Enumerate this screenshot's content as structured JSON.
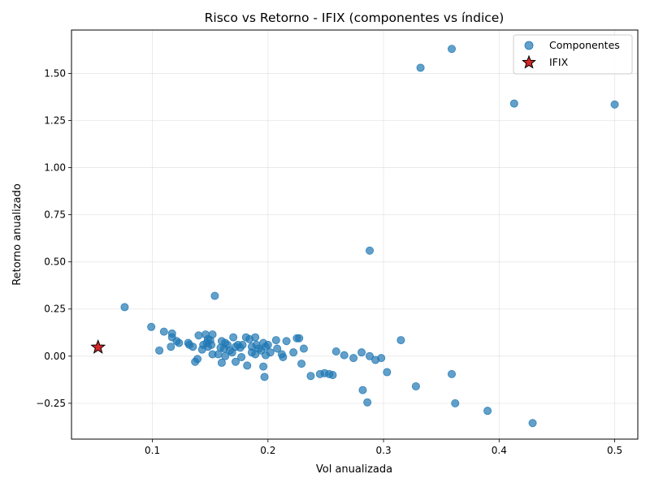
{
  "chart_data": {
    "type": "scatter",
    "title": "Risco vs Retorno - IFIX (componentes vs índice)",
    "xlabel": "Vol anualizada",
    "ylabel": "Retorno anualizado",
    "xlim": [
      0.03,
      0.52
    ],
    "ylim": [
      -0.44,
      1.73
    ],
    "xticks": [
      0.1,
      0.2,
      0.3,
      0.4,
      0.5
    ],
    "xtick_labels": [
      "0.1",
      "0.2",
      "0.3",
      "0.4",
      "0.5"
    ],
    "yticks": [
      -0.25,
      0.0,
      0.25,
      0.5,
      0.75,
      1.0,
      1.25,
      1.5
    ],
    "ytick_labels": [
      "−0.25",
      "0.00",
      "0.25",
      "0.50",
      "0.75",
      "1.00",
      "1.25",
      "1.50"
    ],
    "grid": true,
    "legend_position": "top-right",
    "series": [
      {
        "name": "Componentes",
        "marker": "circle",
        "color": "#1f77b4",
        "points": [
          [
            0.359,
            1.63
          ],
          [
            0.332,
            1.53
          ],
          [
            0.413,
            1.34
          ],
          [
            0.5,
            1.335
          ],
          [
            0.288,
            0.56
          ],
          [
            0.154,
            0.32
          ],
          [
            0.076,
            0.26
          ],
          [
            0.099,
            0.155
          ],
          [
            0.11,
            0.13
          ],
          [
            0.117,
            0.12
          ],
          [
            0.117,
            0.1
          ],
          [
            0.121,
            0.08
          ],
          [
            0.123,
            0.07
          ],
          [
            0.106,
            0.03
          ],
          [
            0.116,
            0.05
          ],
          [
            0.131,
            0.07
          ],
          [
            0.132,
            0.06
          ],
          [
            0.135,
            0.05
          ],
          [
            0.14,
            0.11
          ],
          [
            0.146,
            0.115
          ],
          [
            0.152,
            0.115
          ],
          [
            0.148,
            0.09
          ],
          [
            0.15,
            0.085
          ],
          [
            0.147,
            0.07
          ],
          [
            0.144,
            0.06
          ],
          [
            0.151,
            0.06
          ],
          [
            0.143,
            0.035
          ],
          [
            0.148,
            0.05
          ],
          [
            0.152,
            0.01
          ],
          [
            0.157,
            0.01
          ],
          [
            0.159,
            0.045
          ],
          [
            0.16,
            0.08
          ],
          [
            0.163,
            0.07
          ],
          [
            0.165,
            0.06
          ],
          [
            0.162,
            0.04
          ],
          [
            0.167,
            0.03
          ],
          [
            0.17,
            0.1
          ],
          [
            0.172,
            0.05
          ],
          [
            0.174,
            0.06
          ],
          [
            0.176,
            0.045
          ],
          [
            0.178,
            0.06
          ],
          [
            0.181,
            0.1
          ],
          [
            0.184,
            0.09
          ],
          [
            0.186,
            0.05
          ],
          [
            0.189,
            0.1
          ],
          [
            0.19,
            0.06
          ],
          [
            0.192,
            0.04
          ],
          [
            0.194,
            0.03
          ],
          [
            0.196,
            0.07
          ],
          [
            0.198,
            0.05
          ],
          [
            0.2,
            0.06
          ],
          [
            0.202,
            0.02
          ],
          [
            0.207,
            0.085
          ],
          [
            0.208,
            0.04
          ],
          [
            0.212,
            0.01
          ],
          [
            0.213,
            -0.005
          ],
          [
            0.216,
            0.08
          ],
          [
            0.222,
            0.02
          ],
          [
            0.225,
            0.095
          ],
          [
            0.227,
            0.095
          ],
          [
            0.231,
            0.04
          ],
          [
            0.163,
            0.0
          ],
          [
            0.16,
            -0.035
          ],
          [
            0.172,
            -0.03
          ],
          [
            0.177,
            -0.005
          ],
          [
            0.182,
            -0.05
          ],
          [
            0.196,
            -0.055
          ],
          [
            0.197,
            -0.11
          ],
          [
            0.139,
            -0.015
          ],
          [
            0.137,
            -0.03
          ],
          [
            0.169,
            0.02
          ],
          [
            0.186,
            0.02
          ],
          [
            0.189,
            0.01
          ],
          [
            0.198,
            0.005
          ],
          [
            0.229,
            -0.04
          ],
          [
            0.237,
            -0.105
          ],
          [
            0.245,
            -0.095
          ],
          [
            0.249,
            -0.09
          ],
          [
            0.253,
            -0.095
          ],
          [
            0.256,
            -0.1
          ],
          [
            0.259,
            0.025
          ],
          [
            0.266,
            0.005
          ],
          [
            0.274,
            -0.01
          ],
          [
            0.281,
            0.02
          ],
          [
            0.288,
            0.0
          ],
          [
            0.293,
            -0.02
          ],
          [
            0.298,
            -0.01
          ],
          [
            0.303,
            -0.085
          ],
          [
            0.282,
            -0.18
          ],
          [
            0.286,
            -0.245
          ],
          [
            0.315,
            0.085
          ],
          [
            0.328,
            -0.16
          ],
          [
            0.359,
            -0.095
          ],
          [
            0.362,
            -0.25
          ],
          [
            0.39,
            -0.29
          ],
          [
            0.429,
            -0.355
          ]
        ]
      },
      {
        "name": "IFIX",
        "marker": "star",
        "color": "#d62728",
        "points": [
          [
            0.053,
            0.047
          ]
        ]
      }
    ]
  }
}
